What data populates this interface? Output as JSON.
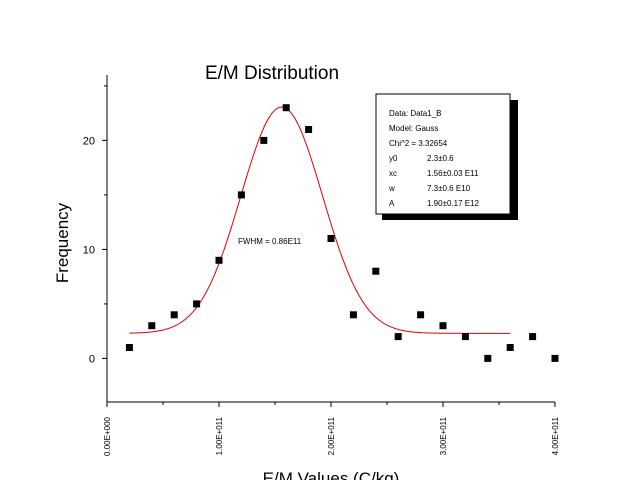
{
  "chart_data": {
    "type": "scatter",
    "title": "E/M Distribution",
    "xlabel": "E/M Values (C/kg)",
    "ylabel": "Frequency",
    "xlim": [
      0,
      400000000000
    ],
    "ylim": [
      -4,
      26
    ],
    "x_ticks": [
      {
        "value": 0,
        "label": "0.00E+000"
      },
      {
        "value": 100000000000,
        "label": "1.00E+011"
      },
      {
        "value": 200000000000,
        "label": "2.00E+011"
      },
      {
        "value": 300000000000,
        "label": "3.00E+011"
      },
      {
        "value": 400000000000,
        "label": "4.00E+011"
      }
    ],
    "y_ticks": [
      {
        "value": 0,
        "label": "0"
      },
      {
        "value": 10,
        "label": "10"
      },
      {
        "value": 20,
        "label": "20"
      }
    ],
    "points": [
      {
        "x": 20000000000,
        "y": 1
      },
      {
        "x": 40000000000,
        "y": 3
      },
      {
        "x": 60000000000,
        "y": 4
      },
      {
        "x": 80000000000,
        "y": 5
      },
      {
        "x": 100000000000,
        "y": 9
      },
      {
        "x": 120000000000,
        "y": 15
      },
      {
        "x": 140000000000,
        "y": 20
      },
      {
        "x": 160000000000,
        "y": 23
      },
      {
        "x": 180000000000,
        "y": 21
      },
      {
        "x": 200000000000,
        "y": 11
      },
      {
        "x": 220000000000,
        "y": 4
      },
      {
        "x": 240000000000,
        "y": 8
      },
      {
        "x": 260000000000,
        "y": 2
      },
      {
        "x": 280000000000,
        "y": 4
      },
      {
        "x": 300000000000,
        "y": 3
      },
      {
        "x": 320000000000,
        "y": 2
      },
      {
        "x": 340000000000,
        "y": 0
      },
      {
        "x": 360000000000,
        "y": 1
      },
      {
        "x": 380000000000,
        "y": 2
      },
      {
        "x": 400000000000,
        "y": 0
      }
    ],
    "fit": {
      "model": "gauss",
      "y0": 2.3,
      "xc": 156000000000,
      "w": 73000000000,
      "A": 1900000000000,
      "x_range": [
        20000000000,
        360000000000
      ],
      "color": "#e00000"
    },
    "marker_color": "#000000",
    "grid": false,
    "annotation": "FWHM = 0.86E11",
    "info_box": {
      "lines": [
        {
          "key": "Data: Data1_B",
          "value": ""
        },
        {
          "key": "Model: Gauss",
          "value": ""
        },
        {
          "key": "Chi^2 = 3.32654",
          "value": ""
        },
        {
          "key": "y0",
          "value": "2.3±0.6"
        },
        {
          "key": "xc",
          "value": "1.56±0.03 E11"
        },
        {
          "key": "w",
          "value": "7.3±0.6 E10"
        },
        {
          "key": "A",
          "value": "1.90±0.17 E12"
        }
      ]
    }
  }
}
